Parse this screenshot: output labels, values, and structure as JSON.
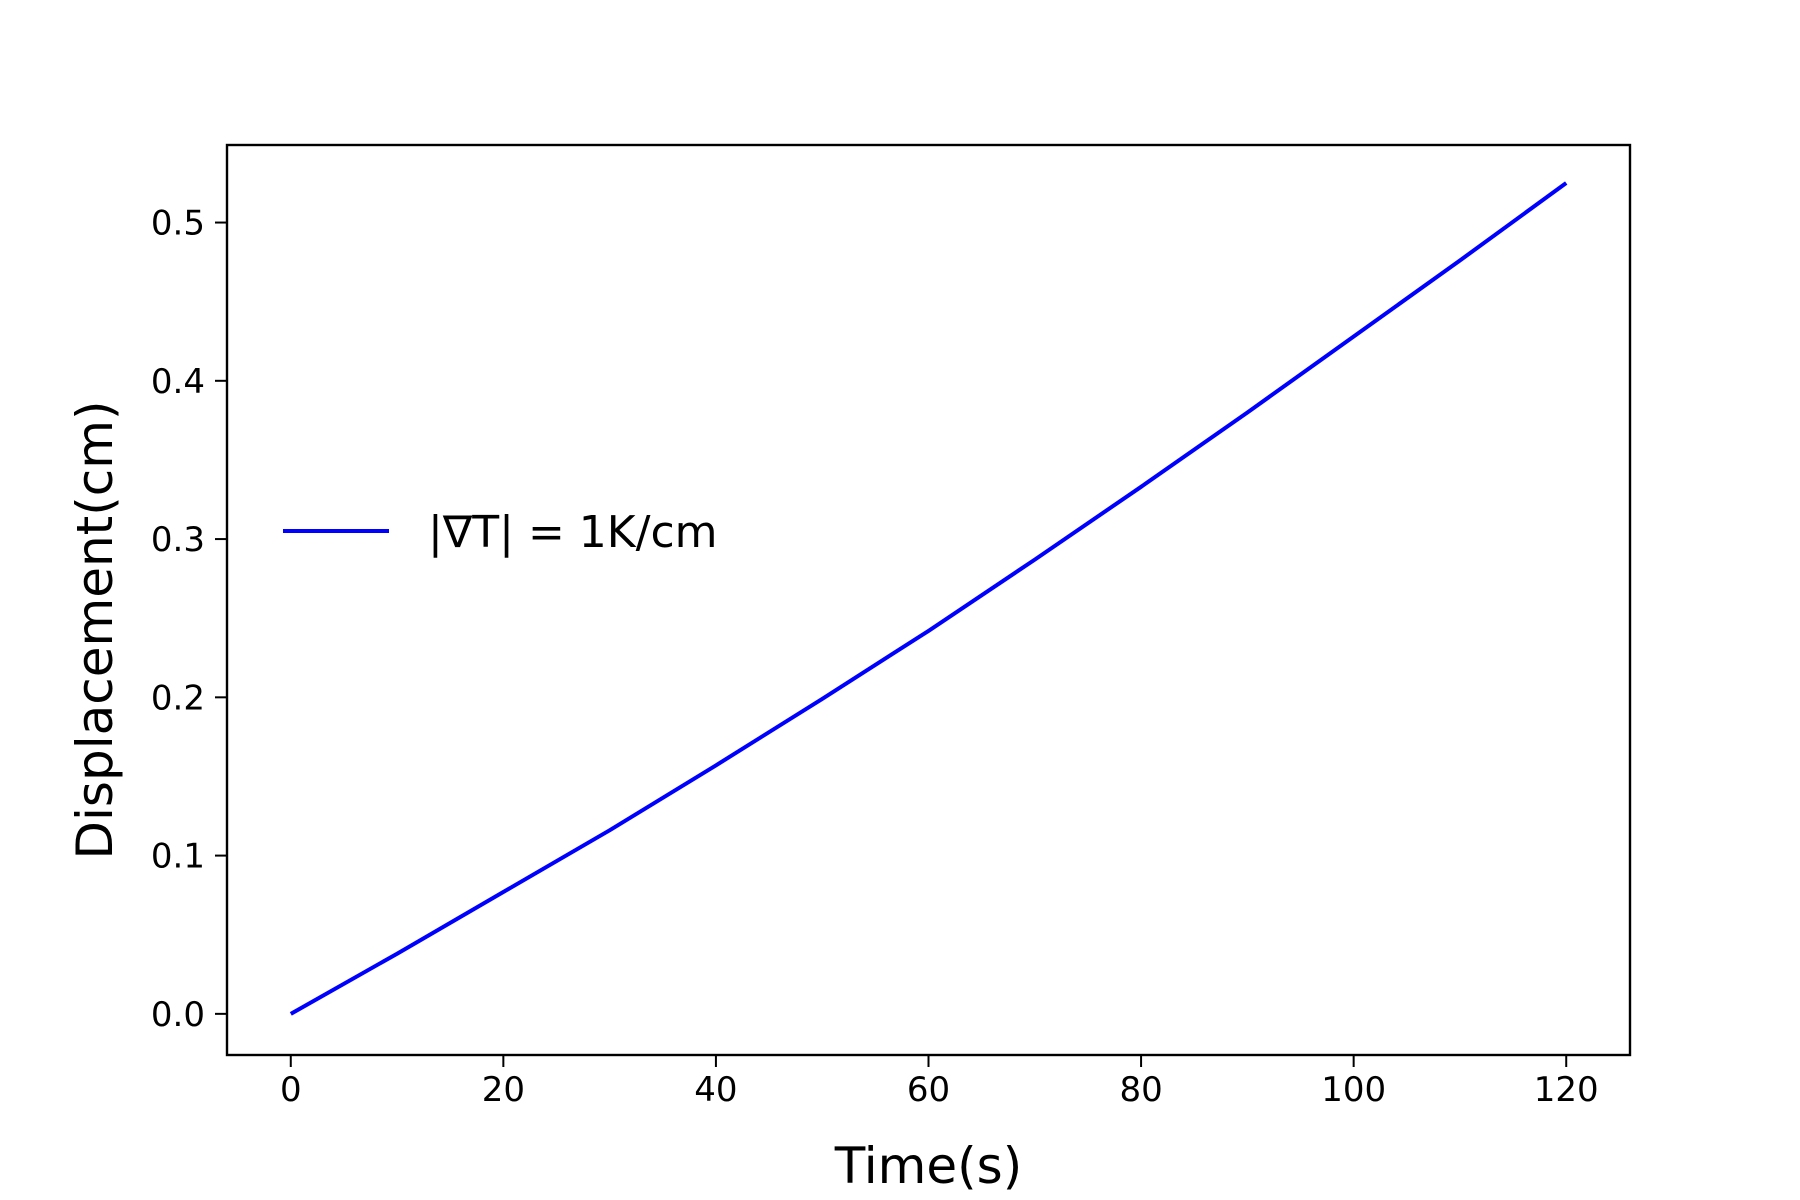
{
  "chart_data": {
    "type": "line",
    "xlabel": "Time(s)",
    "ylabel": "Displacement(cm)",
    "xlim": [
      -6,
      126
    ],
    "ylim": [
      -0.026,
      0.549
    ],
    "x_ticks": [
      0,
      20,
      40,
      60,
      80,
      100,
      120
    ],
    "x_tick_labels": [
      "0",
      "20",
      "40",
      "60",
      "80",
      "100",
      "120"
    ],
    "y_ticks": [
      0.0,
      0.1,
      0.2,
      0.3,
      0.4,
      0.5
    ],
    "y_tick_labels": [
      "0.0",
      "0.1",
      "0.2",
      "0.3",
      "0.4",
      "0.5"
    ],
    "grid": false,
    "legend_position": "center-left",
    "series": [
      {
        "name": "|∇T| = 1K/cm",
        "color": "#0000ff",
        "x": [
          0,
          10,
          20,
          30,
          40,
          50,
          60,
          70,
          80,
          90,
          100,
          110,
          120
        ],
        "y": [
          0.0,
          0.038,
          0.077,
          0.116,
          0.157,
          0.199,
          0.242,
          0.287,
          0.333,
          0.38,
          0.428,
          0.476,
          0.525
        ]
      }
    ]
  }
}
